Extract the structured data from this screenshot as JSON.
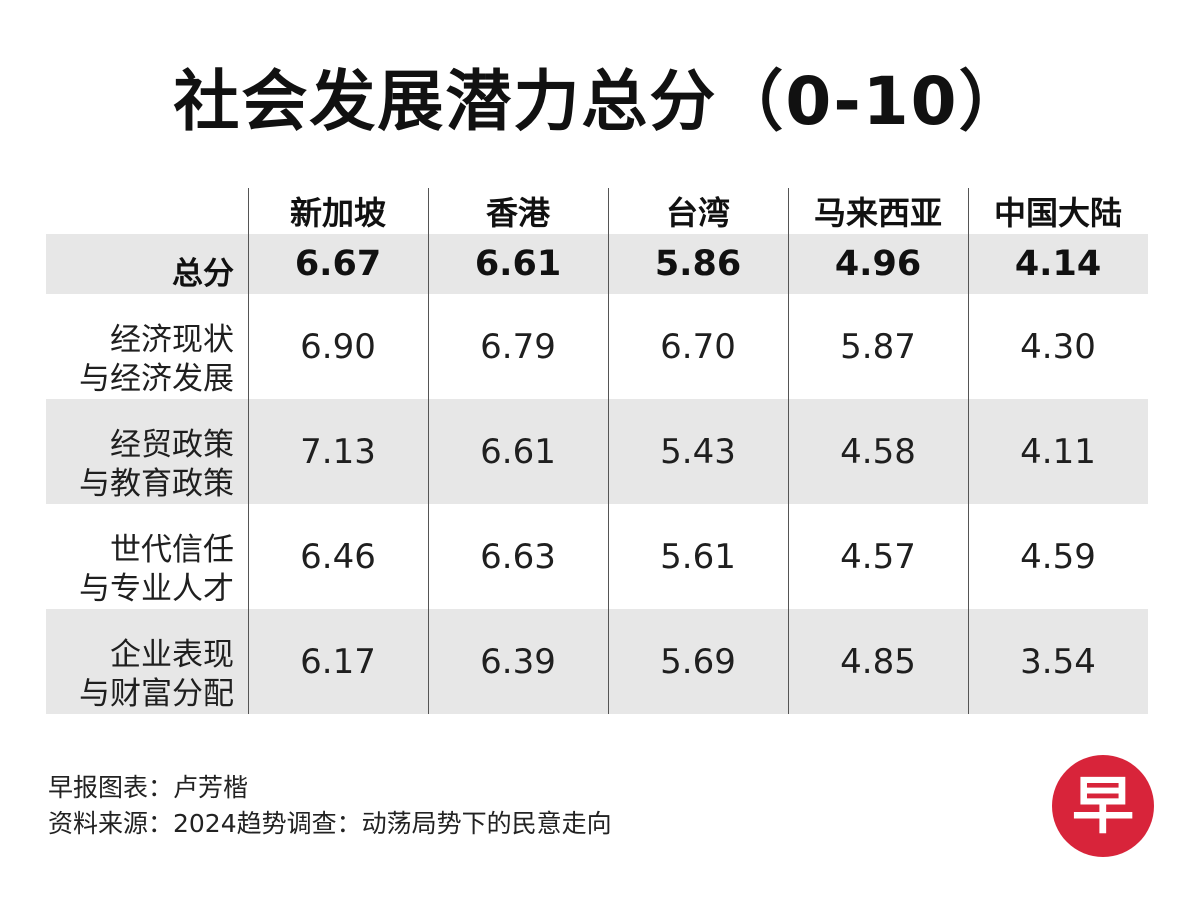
{
  "title": "社会发展潜力总分（0-10）",
  "chart_data": {
    "type": "table",
    "title": "社会发展潜力总分（0-10）",
    "columns": [
      "新加坡",
      "香港",
      "台湾",
      "马来西亚",
      "中国大陆"
    ],
    "rows": [
      {
        "label_lines": [
          "总分"
        ],
        "values": [
          "6.67",
          "6.61",
          "5.86",
          "4.96",
          "4.14"
        ],
        "bold": true
      },
      {
        "label_lines": [
          "经济现状",
          "与经济发展"
        ],
        "values": [
          "6.90",
          "6.79",
          "6.70",
          "5.87",
          "4.30"
        ]
      },
      {
        "label_lines": [
          "经贸政策",
          "与教育政策"
        ],
        "values": [
          "7.13",
          "6.61",
          "5.43",
          "4.58",
          "4.11"
        ]
      },
      {
        "label_lines": [
          "世代信任",
          "与专业人才"
        ],
        "values": [
          "6.46",
          "6.63",
          "5.61",
          "4.57",
          "4.59"
        ]
      },
      {
        "label_lines": [
          "企业表现",
          "与财富分配"
        ],
        "values": [
          "6.17",
          "6.39",
          "5.69",
          "4.85",
          "3.54"
        ]
      }
    ]
  },
  "footer": {
    "credit": "早报图表：卢芳楷",
    "source": "资料来源：2024趋势调查：动荡局势下的民意走向"
  },
  "logo": {
    "char": "早",
    "color": "#d8243a"
  }
}
